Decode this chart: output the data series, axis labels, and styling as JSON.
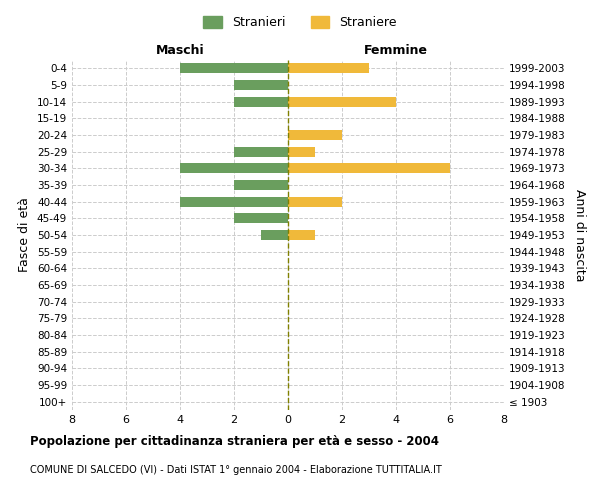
{
  "age_groups": [
    "100+",
    "95-99",
    "90-94",
    "85-89",
    "80-84",
    "75-79",
    "70-74",
    "65-69",
    "60-64",
    "55-59",
    "50-54",
    "45-49",
    "40-44",
    "35-39",
    "30-34",
    "25-29",
    "20-24",
    "15-19",
    "10-14",
    "5-9",
    "0-4"
  ],
  "birth_years": [
    "≤ 1903",
    "1904-1908",
    "1909-1913",
    "1914-1918",
    "1919-1923",
    "1924-1928",
    "1929-1933",
    "1934-1938",
    "1939-1943",
    "1944-1948",
    "1949-1953",
    "1954-1958",
    "1959-1963",
    "1964-1968",
    "1969-1973",
    "1974-1978",
    "1979-1983",
    "1984-1988",
    "1989-1993",
    "1994-1998",
    "1999-2003"
  ],
  "males": [
    0,
    0,
    0,
    0,
    0,
    0,
    0,
    0,
    0,
    0,
    1,
    2,
    4,
    2,
    4,
    2,
    0,
    0,
    2,
    2,
    4
  ],
  "females": [
    0,
    0,
    0,
    0,
    0,
    0,
    0,
    0,
    0,
    0,
    1,
    0,
    2,
    0,
    6,
    1,
    2,
    0,
    4,
    0,
    3
  ],
  "male_color": "#6a9e5e",
  "female_color": "#f0b93a",
  "title": "Popolazione per cittadinanza straniera per età e sesso - 2004",
  "subtitle": "COMUNE DI SALCEDO (VI) - Dati ISTAT 1° gennaio 2004 - Elaborazione TUTTITALIA.IT",
  "xlabel_left": "Maschi",
  "xlabel_right": "Femmine",
  "ylabel_left": "Fasce di età",
  "ylabel_right": "Anni di nascita",
  "legend_male": "Stranieri",
  "legend_female": "Straniere",
  "xlim": 8,
  "background_color": "#ffffff",
  "grid_color": "#cccccc"
}
